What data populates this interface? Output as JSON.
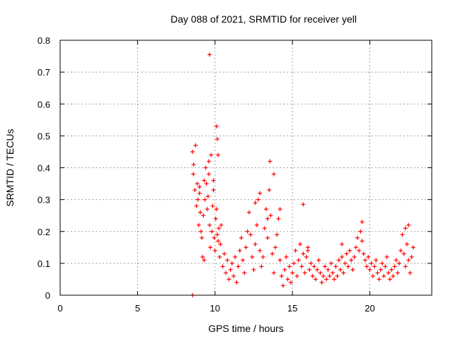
{
  "chart_data": {
    "type": "scatter",
    "title": "Day 088 of 2021, SRMTID for receiver yell",
    "xlabel": "GPS time / hours",
    "ylabel": "SRMTID / TECUs",
    "xlim": [
      0,
      24
    ],
    "ylim": [
      0,
      0.8
    ],
    "xticks": [
      0,
      5,
      10,
      15,
      20
    ],
    "xtick_labels": [
      "0",
      "5",
      "10",
      "15",
      "20"
    ],
    "yticks": [
      0,
      0.1,
      0.2,
      0.3,
      0.4,
      0.5,
      0.6,
      0.7,
      0.8
    ],
    "ytick_labels": [
      "0",
      "0.1",
      "0.2",
      "0.3",
      "0.4",
      "0.5",
      "0.6",
      "0.7",
      "0.8"
    ],
    "grid": true,
    "marker": "+",
    "color": "#ff0000",
    "series": [
      {
        "name": "yell",
        "x": [
          8.55,
          8.55,
          8.6,
          8.62,
          8.7,
          8.75,
          8.8,
          8.85,
          8.9,
          8.95,
          9.0,
          9.05,
          9.1,
          9.15,
          9.2,
          9.25,
          9.3,
          9.35,
          9.4,
          9.45,
          9.5,
          9.55,
          9.6,
          9.65,
          9.7,
          9.75,
          9.8,
          9.85,
          9.9,
          9.95,
          10.0,
          10.05,
          10.1,
          10.15,
          10.2,
          10.25,
          10.3,
          10.35,
          10.4,
          10.5,
          10.6,
          10.7,
          10.8,
          10.9,
          11.0,
          11.1,
          11.2,
          11.3,
          11.4,
          11.5,
          11.6,
          11.7,
          11.8,
          11.9,
          12.0,
          12.1,
          12.2,
          12.3,
          12.4,
          12.5,
          12.6,
          12.7,
          12.8,
          12.9,
          13.0,
          13.1,
          13.2,
          13.3,
          13.4,
          13.5,
          13.6,
          13.7,
          13.8,
          13.9,
          14.0,
          14.1,
          14.2,
          14.3,
          14.4,
          14.5,
          14.6,
          14.7,
          14.8,
          14.9,
          15.0,
          15.1,
          15.2,
          15.3,
          15.4,
          15.5,
          15.6,
          15.7,
          15.8,
          15.9,
          16.0,
          16.1,
          16.2,
          16.3,
          16.4,
          16.5,
          16.6,
          16.7,
          16.8,
          16.9,
          17.0,
          17.1,
          17.2,
          17.3,
          17.4,
          17.5,
          17.6,
          17.7,
          17.8,
          17.9,
          18.0,
          18.1,
          18.2,
          18.3,
          18.4,
          18.5,
          18.6,
          18.7,
          18.8,
          18.9,
          19.0,
          19.1,
          19.2,
          19.3,
          19.4,
          19.5,
          19.6,
          19.7,
          19.8,
          19.9,
          20.0,
          20.1,
          20.2,
          20.3,
          20.4,
          20.5,
          20.6,
          20.7,
          20.8,
          20.9,
          21.0,
          21.1,
          21.2,
          21.3,
          21.4,
          21.5,
          21.6,
          21.7,
          21.8,
          21.9,
          22.0,
          22.1,
          22.2,
          22.3,
          22.4,
          22.5,
          22.6,
          22.7,
          22.8,
          9.65,
          10.1,
          10.15,
          13.55,
          15.7,
          9.0,
          9.3,
          9.6,
          9.9,
          10.2,
          12.6,
          12.9,
          13.4,
          13.8,
          14.2,
          19.5,
          22.3,
          22.5,
          16.0,
          18.2
        ],
        "y": [
          0.0,
          0.45,
          0.38,
          0.41,
          0.33,
          0.47,
          0.28,
          0.35,
          0.3,
          0.22,
          0.34,
          0.26,
          0.2,
          0.18,
          0.12,
          0.25,
          0.36,
          0.3,
          0.4,
          0.35,
          0.27,
          0.31,
          0.38,
          0.22,
          0.15,
          0.44,
          0.2,
          0.28,
          0.33,
          0.18,
          0.14,
          0.24,
          0.27,
          0.19,
          0.17,
          0.21,
          0.12,
          0.16,
          0.22,
          0.09,
          0.13,
          0.07,
          0.11,
          0.05,
          0.08,
          0.1,
          0.06,
          0.12,
          0.04,
          0.09,
          0.14,
          0.18,
          0.11,
          0.07,
          0.15,
          0.2,
          0.26,
          0.19,
          0.12,
          0.08,
          0.16,
          0.22,
          0.3,
          0.14,
          0.09,
          0.12,
          0.21,
          0.27,
          0.18,
          0.33,
          0.25,
          0.13,
          0.07,
          0.15,
          0.19,
          0.24,
          0.11,
          0.06,
          0.03,
          0.08,
          0.12,
          0.05,
          0.09,
          0.04,
          0.07,
          0.1,
          0.14,
          0.06,
          0.11,
          0.16,
          0.09,
          0.13,
          0.07,
          0.12,
          0.15,
          0.08,
          0.1,
          0.06,
          0.09,
          0.05,
          0.08,
          0.11,
          0.07,
          0.04,
          0.06,
          0.09,
          0.05,
          0.08,
          0.06,
          0.1,
          0.07,
          0.05,
          0.09,
          0.06,
          0.11,
          0.08,
          0.12,
          0.07,
          0.1,
          0.13,
          0.09,
          0.14,
          0.11,
          0.08,
          0.12,
          0.15,
          0.18,
          0.14,
          0.2,
          0.17,
          0.13,
          0.11,
          0.09,
          0.12,
          0.08,
          0.1,
          0.06,
          0.09,
          0.11,
          0.07,
          0.05,
          0.08,
          0.1,
          0.06,
          0.09,
          0.12,
          0.07,
          0.05,
          0.08,
          0.06,
          0.09,
          0.11,
          0.07,
          0.1,
          0.14,
          0.19,
          0.13,
          0.09,
          0.16,
          0.11,
          0.07,
          0.12,
          0.15,
          0.755,
          0.53,
          0.49,
          0.42,
          0.285,
          0.32,
          0.11,
          0.42,
          0.36,
          0.44,
          0.29,
          0.32,
          0.24,
          0.38,
          0.27,
          0.23,
          0.21,
          0.22,
          0.14,
          0.16
        ]
      }
    ]
  }
}
